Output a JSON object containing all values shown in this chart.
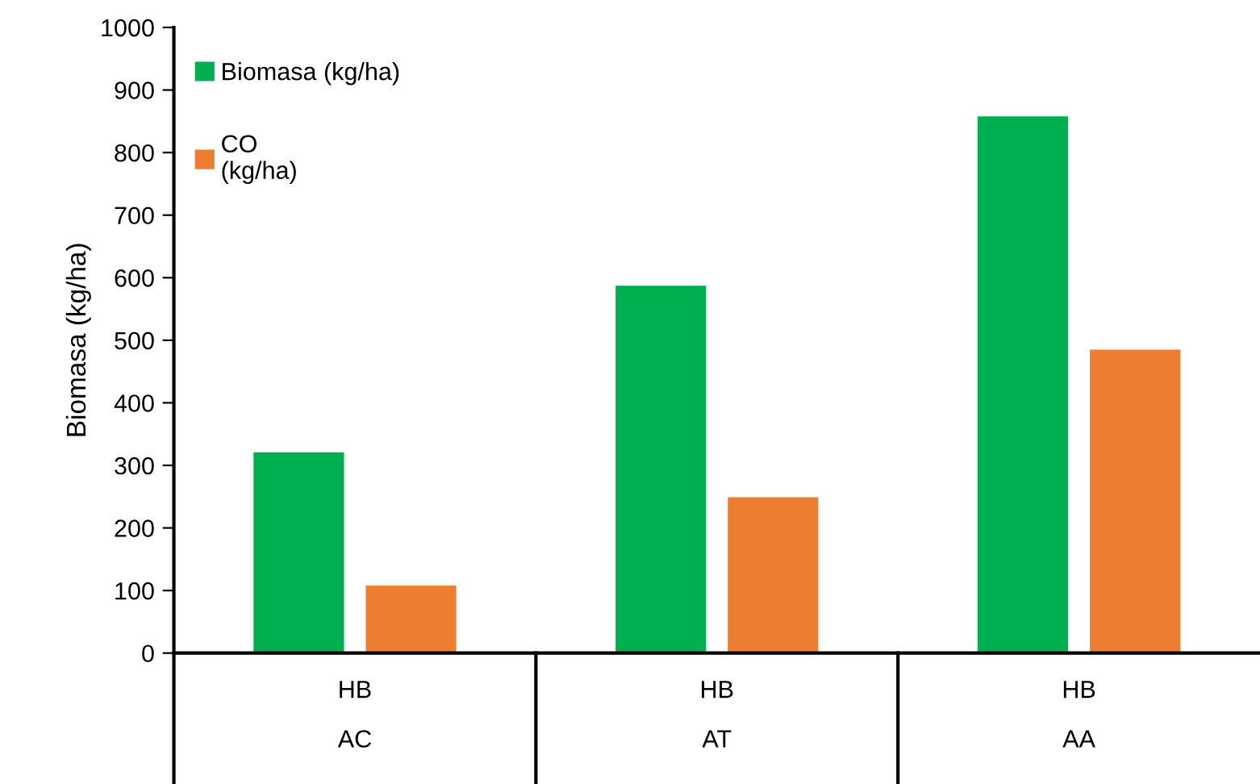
{
  "chart_data": {
    "type": "bar",
    "ylabel": "Biomasa (kg/ha)",
    "categories": [
      "HB\n\nAC",
      "HB\n\nAT",
      "HB\n\nAA"
    ],
    "series": [
      {
        "name": "Biomasa (kg/ha)",
        "color": "#00b050",
        "values": [
          321,
          587,
          858
        ]
      },
      {
        "name": "CO\n(kg/ha)",
        "color": "#ed7d31",
        "values": [
          108,
          249,
          485
        ]
      }
    ],
    "ylim": [
      0,
      1000
    ],
    "yticks": [
      0,
      100,
      200,
      300,
      400,
      500,
      600,
      700,
      800,
      900,
      1000
    ],
    "grid": false,
    "legend": "top left"
  }
}
